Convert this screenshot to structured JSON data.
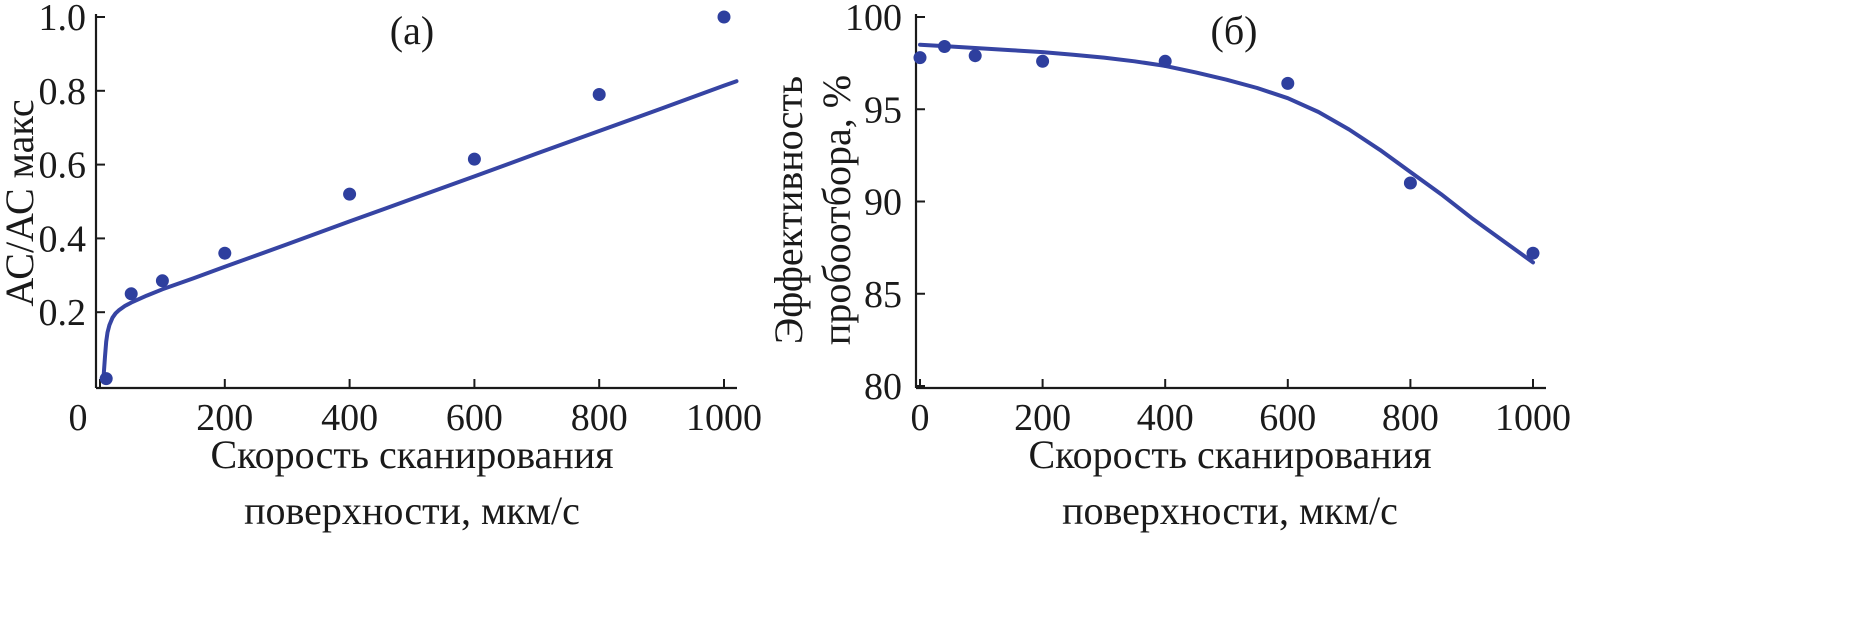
{
  "colors": {
    "marker": "#2e3f9e",
    "curve": "#3644a3",
    "axis": "#1a1a1a"
  },
  "chart_data": [
    {
      "type": "scatter",
      "panel_label": "(а)",
      "title": "",
      "xlabel": [
        "Скорость сканирования",
        "поверхности, мкм/с"
      ],
      "ylabel": [
        "АС/АС макс"
      ],
      "xlim": [
        0,
        1000
      ],
      "ylim": [
        0,
        1.0
      ],
      "xticks": [
        0,
        200,
        400,
        600,
        800,
        1000
      ],
      "xtick_labels": [
        "0",
        "200",
        "400",
        "600",
        "800",
        "1000"
      ],
      "yticks": [
        0.2,
        0.4,
        0.6,
        0.8,
        1.0
      ],
      "ytick_labels": [
        "0.2",
        "0.4",
        "0.6",
        "0.8",
        "1.0"
      ],
      "grid": false,
      "series": [
        {
          "kind": "points",
          "x": [
            10,
            50,
            100,
            200,
            400,
            600,
            800,
            1000
          ],
          "y": [
            0.02,
            0.25,
            0.285,
            0.36,
            0.52,
            0.615,
            0.79,
            1.0
          ]
        },
        {
          "kind": "fit",
          "x": [
            6,
            8,
            10,
            12,
            15,
            20,
            25,
            30,
            40,
            50,
            75,
            100,
            150,
            200,
            300,
            400,
            500,
            600,
            700,
            800,
            900,
            1000,
            1020
          ],
          "y": [
            0.03,
            0.08,
            0.12,
            0.145,
            0.165,
            0.185,
            0.197,
            0.205,
            0.217,
            0.226,
            0.245,
            0.262,
            0.292,
            0.323,
            0.384,
            0.446,
            0.507,
            0.568,
            0.63,
            0.691,
            0.752,
            0.814,
            0.826
          ]
        }
      ]
    },
    {
      "type": "scatter",
      "panel_label": "(б)",
      "title": "",
      "xlabel": [
        "Скорость сканирования",
        "поверхности, мкм/с"
      ],
      "ylabel": [
        "Эффективность",
        "пробоотбора, %"
      ],
      "xlim": [
        0,
        1000
      ],
      "ylim": [
        80,
        100
      ],
      "xticks": [
        0,
        200,
        400,
        600,
        800,
        1000
      ],
      "xtick_labels": [
        "0",
        "200",
        "400",
        "600",
        "800",
        "1000"
      ],
      "yticks": [
        80,
        85,
        90,
        95,
        100
      ],
      "ytick_labels": [
        "80",
        "85",
        "90",
        "95",
        "100"
      ],
      "grid": false,
      "series": [
        {
          "kind": "points",
          "x": [
            0,
            40,
            90,
            200,
            400,
            600,
            800,
            1000
          ],
          "y": [
            97.8,
            98.4,
            97.9,
            97.6,
            97.6,
            96.4,
            91.0,
            87.2
          ]
        },
        {
          "kind": "fit",
          "x": [
            0,
            50,
            100,
            150,
            200,
            250,
            300,
            350,
            400,
            450,
            500,
            550,
            600,
            650,
            700,
            750,
            800,
            850,
            900,
            950,
            1000
          ],
          "y": [
            98.5,
            98.4,
            98.3,
            98.2,
            98.1,
            97.95,
            97.8,
            97.6,
            97.35,
            97.0,
            96.6,
            96.15,
            95.6,
            94.85,
            93.9,
            92.8,
            91.6,
            90.4,
            89.1,
            87.9,
            86.7
          ]
        }
      ]
    }
  ]
}
